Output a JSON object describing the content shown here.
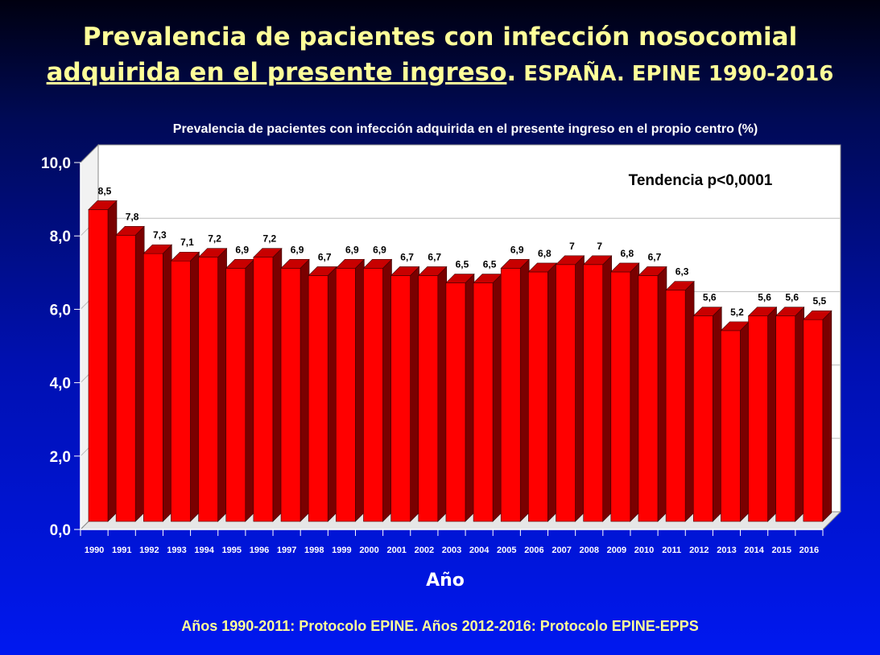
{
  "header": {
    "title_line1": "Prevalencia de pacientes con infección nosocomial",
    "title_line2_underlined": "adquirida en el presente ingreso",
    "title_line2_dot": ".",
    "title_line2_suffix": " ESPAÑA. EPINE 1990-2016"
  },
  "footer": {
    "text": "Años 1990-2011: Protocolo EPINE.  Años 2012-2016: Protocolo EPINE-EPPS"
  },
  "colors": {
    "bar_front": "#ff0000",
    "bar_side": "#7a0000",
    "bar_top": "#c80000",
    "plot_bg": "#ffffff",
    "axis_text": "#ffffff",
    "title": "#ffff99"
  },
  "chart_data": {
    "type": "bar",
    "title": "Prevalencia de pacientes con infección adquirida en el presente ingreso en el propio centro (%)",
    "xlabel": "Año",
    "ylabel": "",
    "ylim": [
      0,
      10
    ],
    "yticks": [
      "0,0",
      "2,0",
      "4,0",
      "6,0",
      "8,0",
      "10,0"
    ],
    "annotation": "Tendencia p<0,0001",
    "grid": true,
    "categories": [
      "1990",
      "1991",
      "1992",
      "1993",
      "1994",
      "1995",
      "1996",
      "1997",
      "1998",
      "1999",
      "2000",
      "2001",
      "2002",
      "2003",
      "2004",
      "2005",
      "2006",
      "2007",
      "2008",
      "2009",
      "2010",
      "2011",
      "2012",
      "2013",
      "2014",
      "2015",
      "2016"
    ],
    "values": [
      8.5,
      7.8,
      7.3,
      7.1,
      7.2,
      6.9,
      7.2,
      6.9,
      6.7,
      6.9,
      6.9,
      6.7,
      6.7,
      6.5,
      6.5,
      6.9,
      6.8,
      7,
      7,
      6.8,
      6.7,
      6.3,
      5.6,
      5.2,
      5.6,
      5.6,
      5.5
    ],
    "value_labels": [
      "8,5",
      "7,8",
      "7,3",
      "7,1",
      "7,2",
      "6,9",
      "7,2",
      "6,9",
      "6,7",
      "6,9",
      "6,9",
      "6,7",
      "6,7",
      "6,5",
      "6,5",
      "6,9",
      "6,8",
      "7",
      "7",
      "6,8",
      "6,7",
      "6,3",
      "5,6",
      "5,2",
      "5,6",
      "5,6",
      "5,5"
    ]
  }
}
